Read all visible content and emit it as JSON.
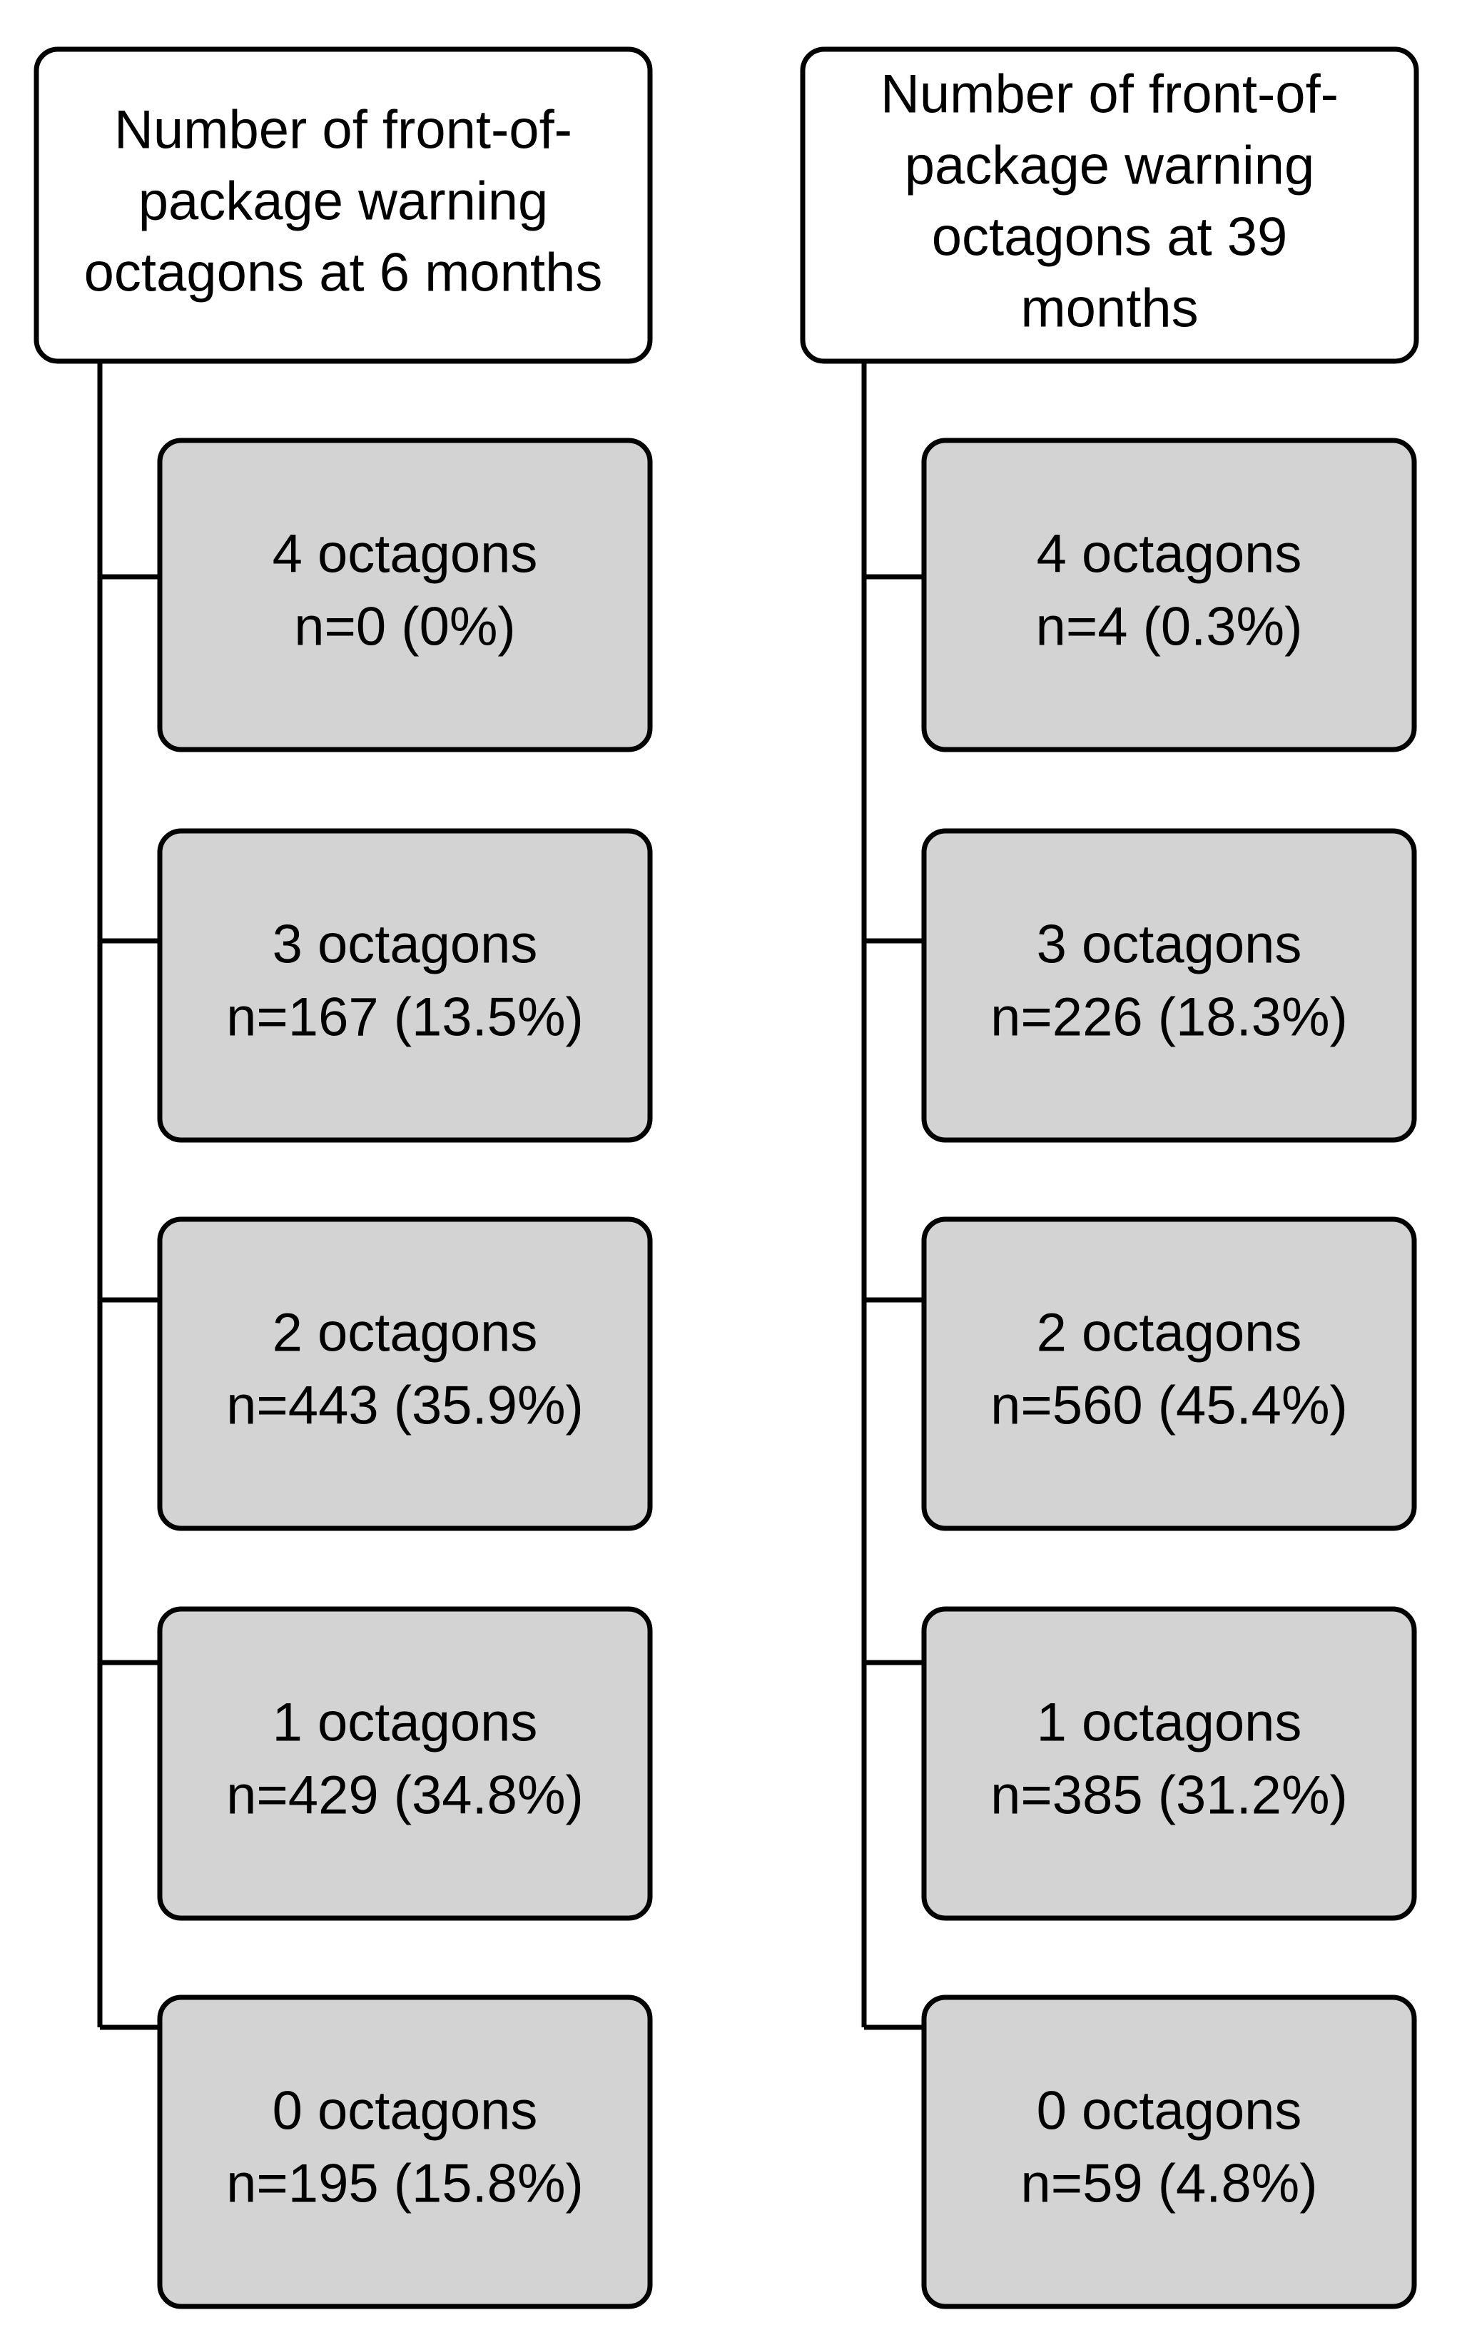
{
  "columns": [
    {
      "header": [
        "Number of front-of-",
        "package warning",
        "octagons at 6 months"
      ],
      "nodes": [
        {
          "label": "4 octagons",
          "count": "n=0 (0%)"
        },
        {
          "label": "3 octagons",
          "count": "n=167 (13.5%)"
        },
        {
          "label": "2 octagons",
          "count": "n=443 (35.9%)"
        },
        {
          "label": "1 octagons",
          "count": "n=429 (34.8%)"
        },
        {
          "label": "0 octagons",
          "count": "n=195 (15.8%)"
        }
      ]
    },
    {
      "header": [
        "Number of front-of-",
        "package warning",
        "octagons at 39",
        "months"
      ],
      "nodes": [
        {
          "label": "4 octagons",
          "count": "n=4 (0.3%)"
        },
        {
          "label": "3 octagons",
          "count": "n=226 (18.3%)"
        },
        {
          "label": "2 octagons",
          "count": "n=560 (45.4%)"
        },
        {
          "label": "1 octagons",
          "count": "n=385 (31.2%)"
        },
        {
          "label": "0 octagons",
          "count": "n=59 (4.8%)"
        }
      ]
    }
  ]
}
